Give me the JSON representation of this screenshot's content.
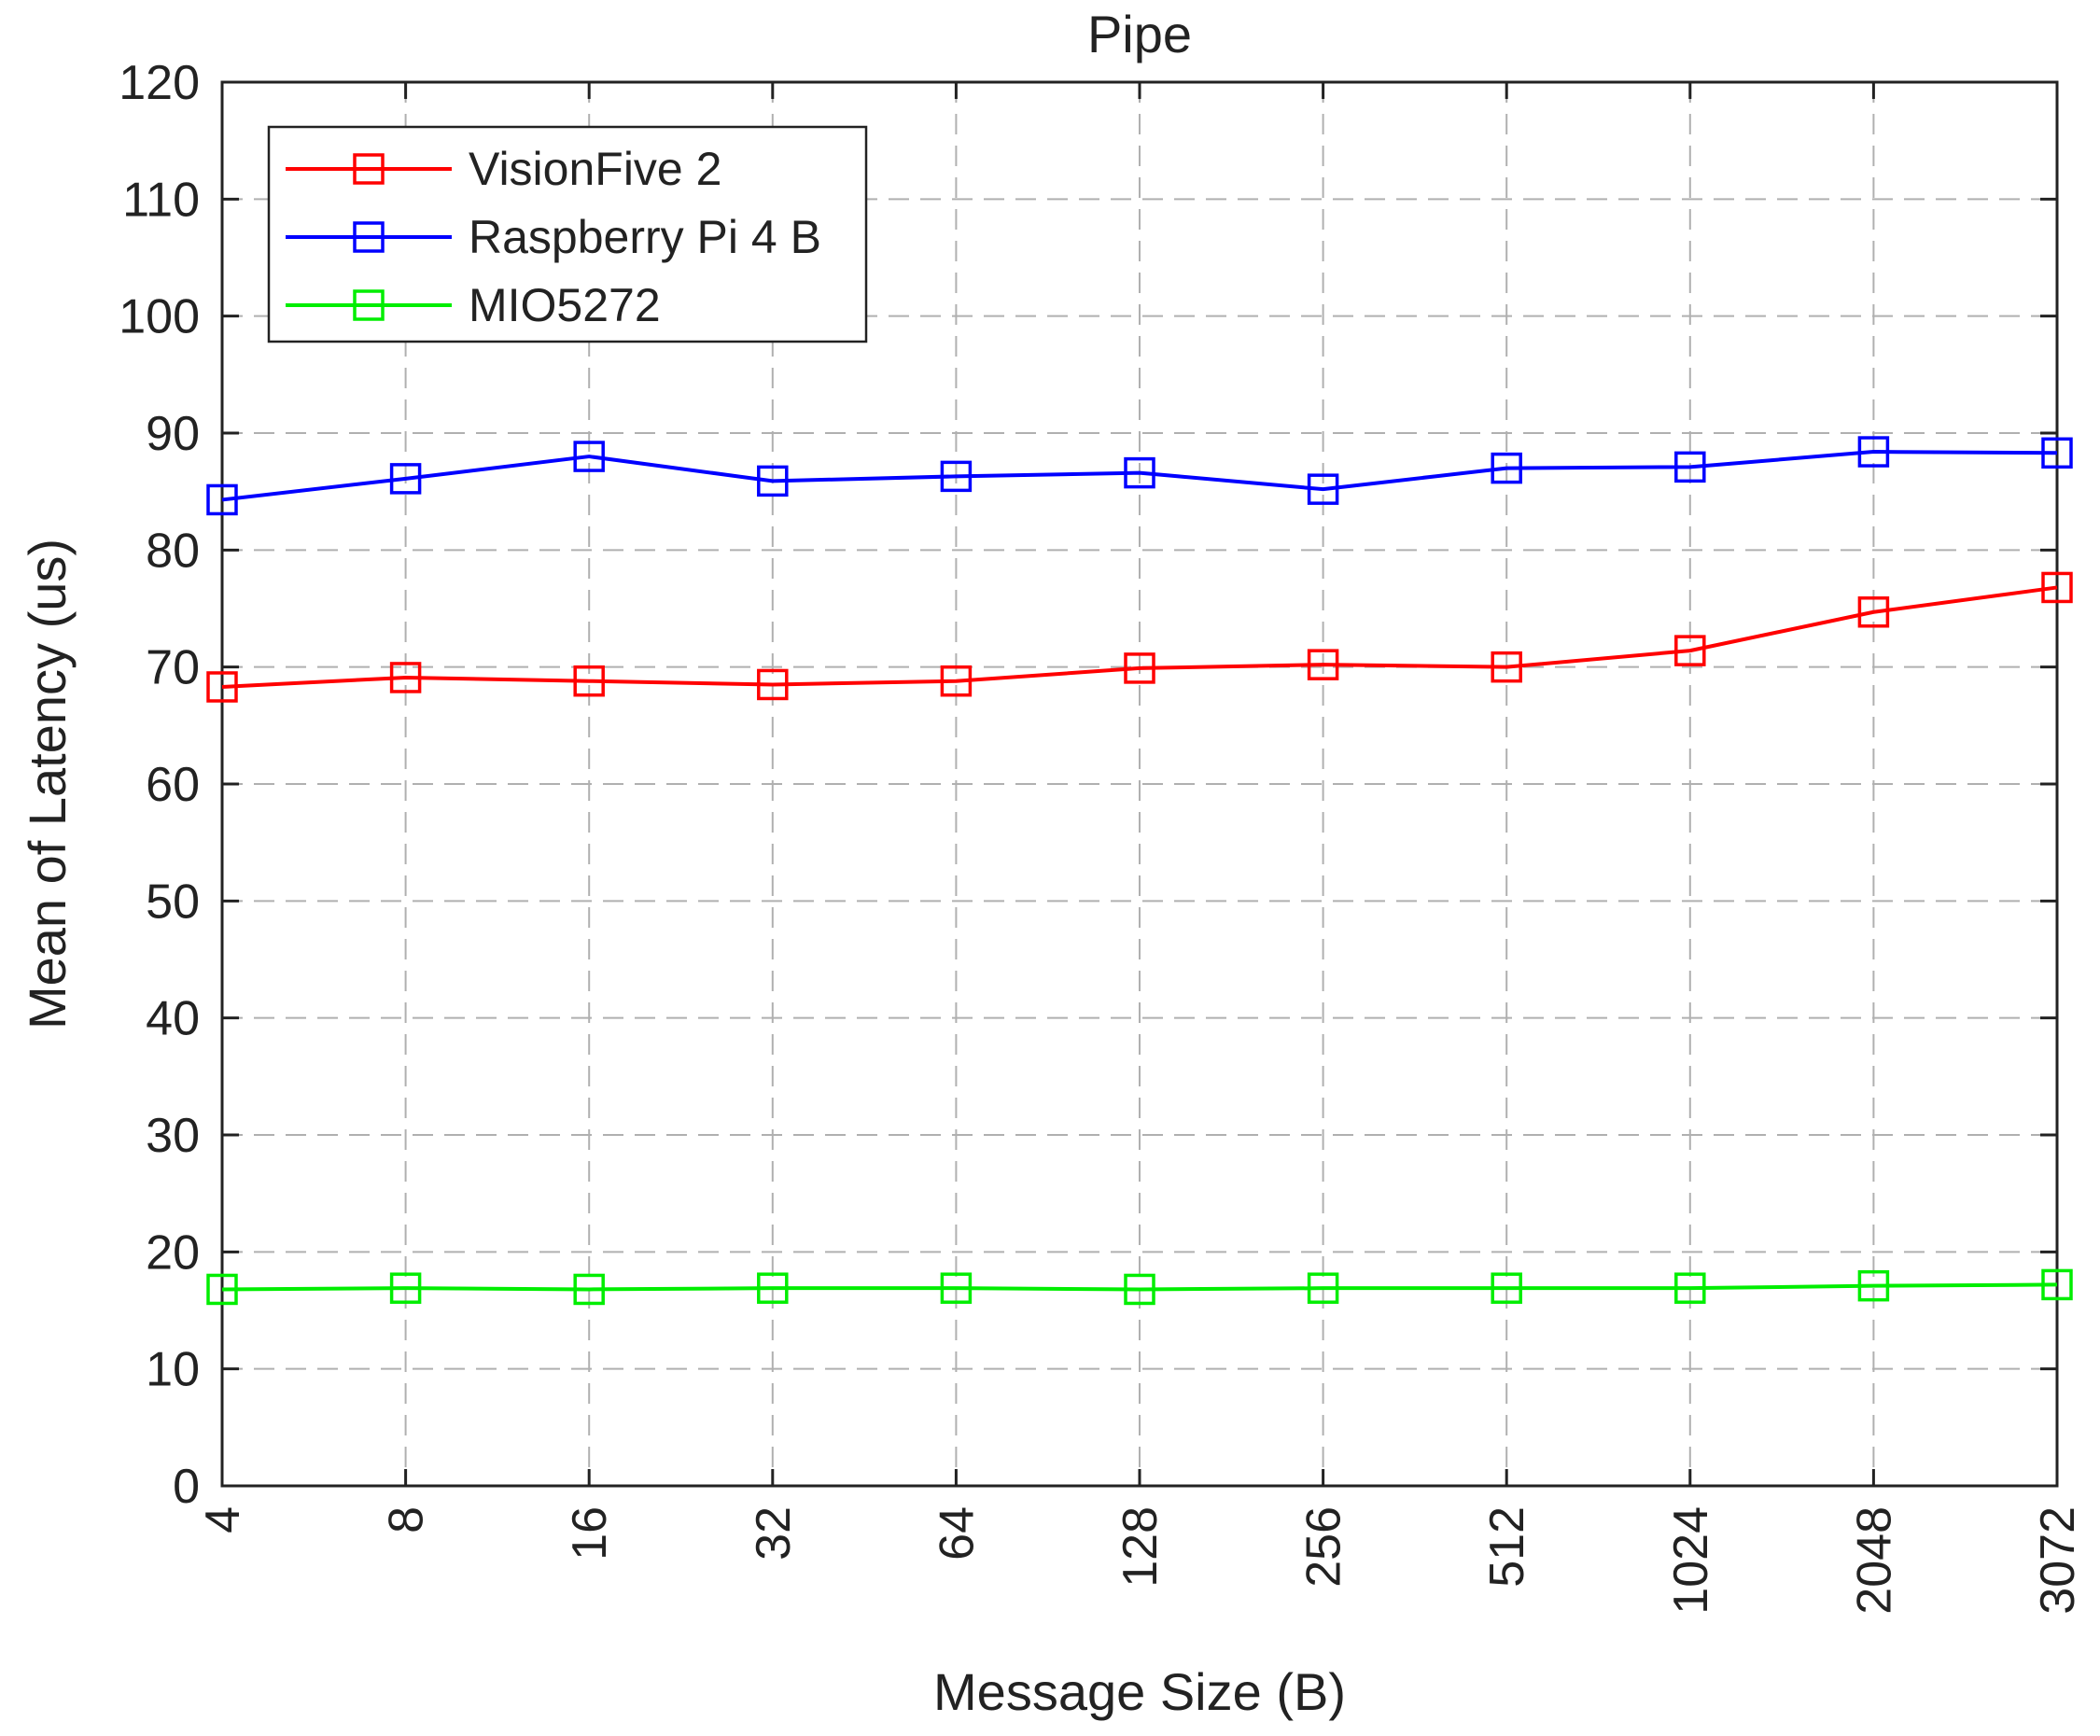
{
  "chart_data": {
    "type": "line",
    "title": "Pipe",
    "xlabel": "Message Size (B)",
    "ylabel": "Mean of Latency (us)",
    "categories": [
      "4",
      "8",
      "16",
      "32",
      "64",
      "128",
      "256",
      "512",
      "1024",
      "2048",
      "3072"
    ],
    "ylim": [
      0,
      120
    ],
    "yticks": [
      0,
      10,
      20,
      30,
      40,
      50,
      60,
      70,
      80,
      90,
      100,
      110,
      120
    ],
    "grid": true,
    "legend_position": "top-left",
    "marker": "square",
    "series": [
      {
        "name": "VisionFive 2",
        "color": "#ff0000",
        "values": [
          68.3,
          69.1,
          68.8,
          68.5,
          68.8,
          69.9,
          70.2,
          70.0,
          71.4,
          74.7,
          76.8
        ]
      },
      {
        "name": "Raspberry Pi 4 B",
        "color": "#0000ff",
        "values": [
          84.3,
          86.1,
          88.0,
          85.9,
          86.3,
          86.6,
          85.2,
          87.0,
          87.1,
          88.4,
          88.3
        ]
      },
      {
        "name": "MIO5272",
        "color": "#00ee00",
        "values": [
          16.8,
          16.9,
          16.8,
          16.9,
          16.9,
          16.8,
          16.9,
          16.9,
          16.9,
          17.1,
          17.2
        ]
      }
    ]
  }
}
